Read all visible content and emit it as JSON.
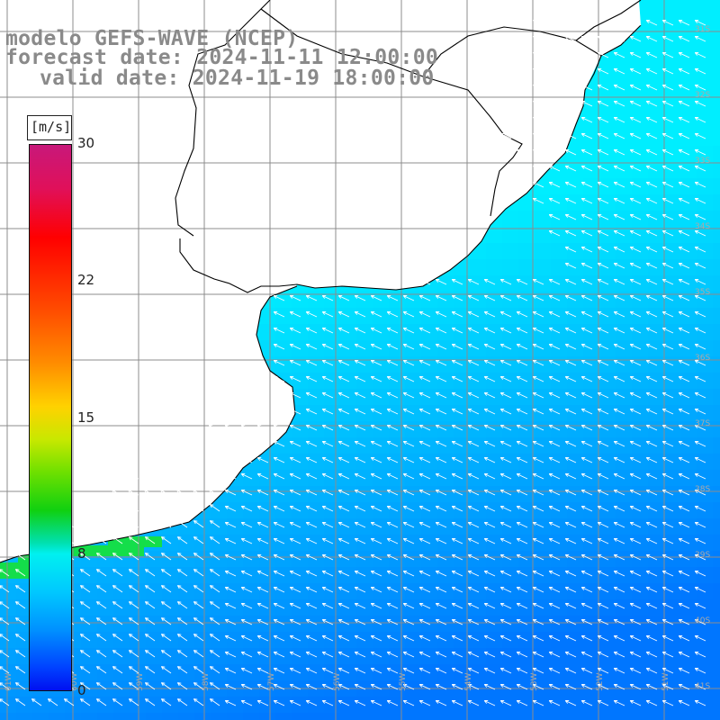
{
  "header": {
    "title": "modelo GEFS-WAVE (NCEP)",
    "forecast_label": "forecast date: 2024-11-11 12:00:00",
    "valid_label": "valid date: 2024-11-19 18:00:00"
  },
  "colorbar": {
    "unit": "[m/s]",
    "ticks": [
      {
        "label": "30",
        "value": 30
      },
      {
        "label": "22",
        "value": 22
      },
      {
        "label": "15",
        "value": 15
      },
      {
        "label": "8",
        "value": 8
      },
      {
        "label": "0",
        "value": 0
      }
    ],
    "colors": {
      "high": "#c8187a",
      "red": "#ff0000",
      "orange": "#ff8c00",
      "yellow": "#ffd200",
      "green": "#10d010",
      "cyan": "#00f0f0",
      "blue": "#0040ff"
    }
  },
  "map": {
    "field": "wind speed with direction arrows",
    "dominant_direction": "from east / south-east toward north-west",
    "land_color": "#ffffff",
    "coast_color": "#000000",
    "grid_color": "#808080",
    "lat_labels": [
      "31S",
      "32S",
      "33S",
      "34S",
      "35S",
      "36S",
      "37S",
      "38S",
      "39S",
      "40S",
      "41S"
    ],
    "lon_labels": [
      "61W",
      "60W",
      "59W",
      "58W",
      "57W",
      "56W",
      "55W",
      "54W",
      "53W",
      "52W",
      "51W"
    ]
  }
}
